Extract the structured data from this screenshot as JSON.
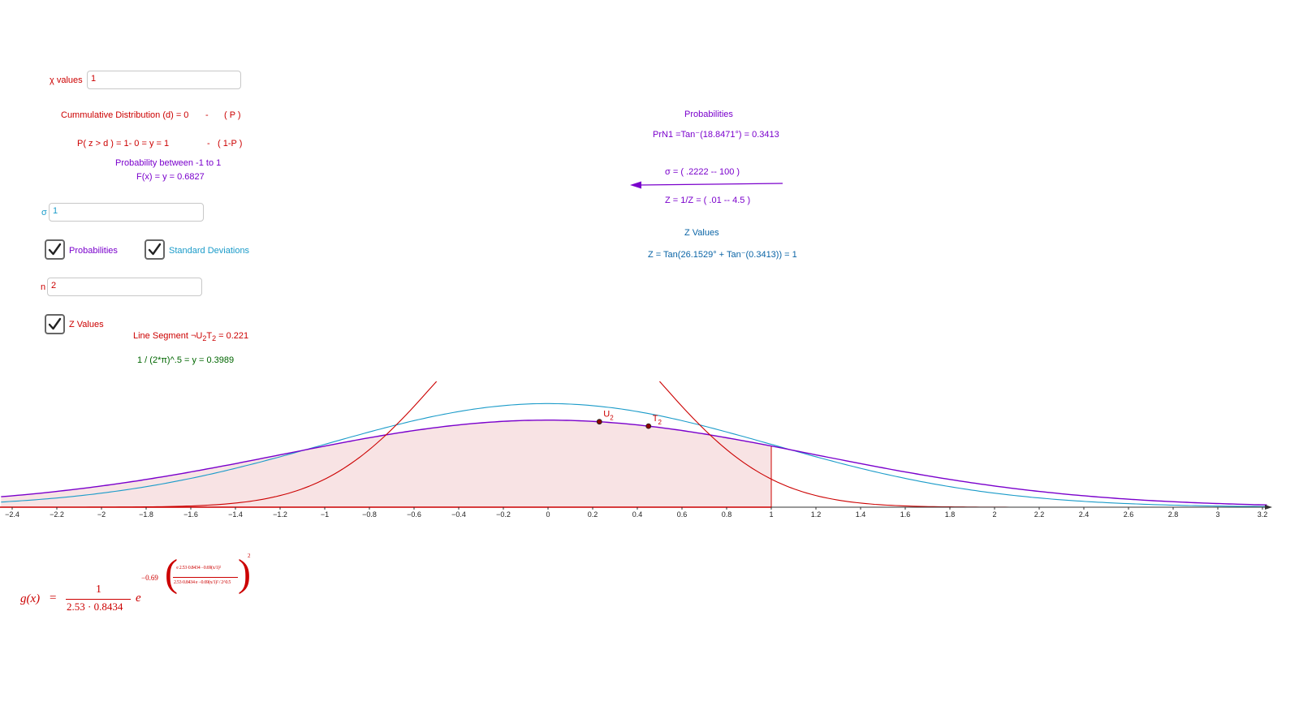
{
  "inputs": {
    "x_values": {
      "label": "χ values",
      "value": "1"
    },
    "sigma": {
      "label": "σ",
      "value": "1"
    },
    "n": {
      "label": "n",
      "value": "2"
    }
  },
  "checkboxes": {
    "probabilities": {
      "label": "Probabilities",
      "checked": true
    },
    "std_devs": {
      "label": "Standard Deviations",
      "checked": true
    },
    "z_values": {
      "label": "Z Values",
      "checked": true
    }
  },
  "texts": {
    "cdf_left": "Cummulative Distribution (d) = 0",
    "cdf_dash": "-",
    "cdf_p": "( P )",
    "pz_left": "P( z > d ) = 1- 0 = y = 1",
    "pz_dash": "-",
    "pz_p": "( 1-P )",
    "prob_between": "Probability between  -1 to 1",
    "fx": "F(x) = y = 0.6827",
    "line_segment_prefix": "Line Segment ",
    "seg_sym": "¬U",
    "seg_sub1": "2",
    "seg_t": "T",
    "seg_sub2": "2",
    "seg_value": " = 0.221",
    "inv_sqrt": "1 / (2*π)^.5 = y = 0.3989",
    "prob_title": "Probabilities",
    "prn1": "PrN1 =Tan⁻(18.8471°) =  0.3413",
    "sigma_range": "σ = ( .2222  --  100 )",
    "z_range": "Z = 1/Z = ( .01 -- 4.5 )",
    "z_title": "Z Values",
    "z_formula": "Z = Tan(26.1529° + Tan⁻(0.3413)) = 1"
  },
  "points": {
    "u": "U",
    "u_sub": "2",
    "t": "T",
    "t_sub": "2"
  },
  "formula": {
    "lhs": "g(x)",
    "eq": "=",
    "numerator": "1",
    "denominator": "2.53 · 0.8434",
    "base": "e",
    "exp_coeff": "−0.69",
    "inner_num": " e 2.53·0.8434 −0.69(x/1)²",
    "inner_den": "2.53·0.8434 e −0.69(x/1)² / 2^0.5",
    "outer_exp": "2"
  },
  "chart_data": {
    "type": "line",
    "xlim": [
      -2.45,
      3.22
    ],
    "ylim": [
      0,
      0.43
    ],
    "x_ticks": [
      "−2.4",
      "−2.2",
      "−2",
      "−1.8",
      "−1.6",
      "−1.4",
      "−1.2",
      "−1",
      "−0.8",
      "−0.6",
      "−0.4",
      "−0.2",
      "0",
      "0.2",
      "0.4",
      "0.6",
      "0.8",
      "1",
      "1.2",
      "1.4",
      "1.6",
      "1.8",
      "2",
      "2.2",
      "2.4",
      "2.6",
      "2.8",
      "3",
      "3.2"
    ],
    "shaded_to_x": 1,
    "series": [
      {
        "color": "#1a9bc9",
        "sigma": 1
      },
      {
        "color": "#7a00cc",
        "sigma": 1.19
      },
      {
        "color": "#cc0000",
        "sigma": 0.5
      }
    ],
    "marked_points": [
      {
        "label": "U2",
        "x": 0.23
      },
      {
        "label": "T2",
        "x": 0.45
      }
    ]
  },
  "colors": {
    "red": "#cc0000",
    "purple": "#7a00cc",
    "cyan": "#1a9bc9",
    "green": "#006600"
  }
}
